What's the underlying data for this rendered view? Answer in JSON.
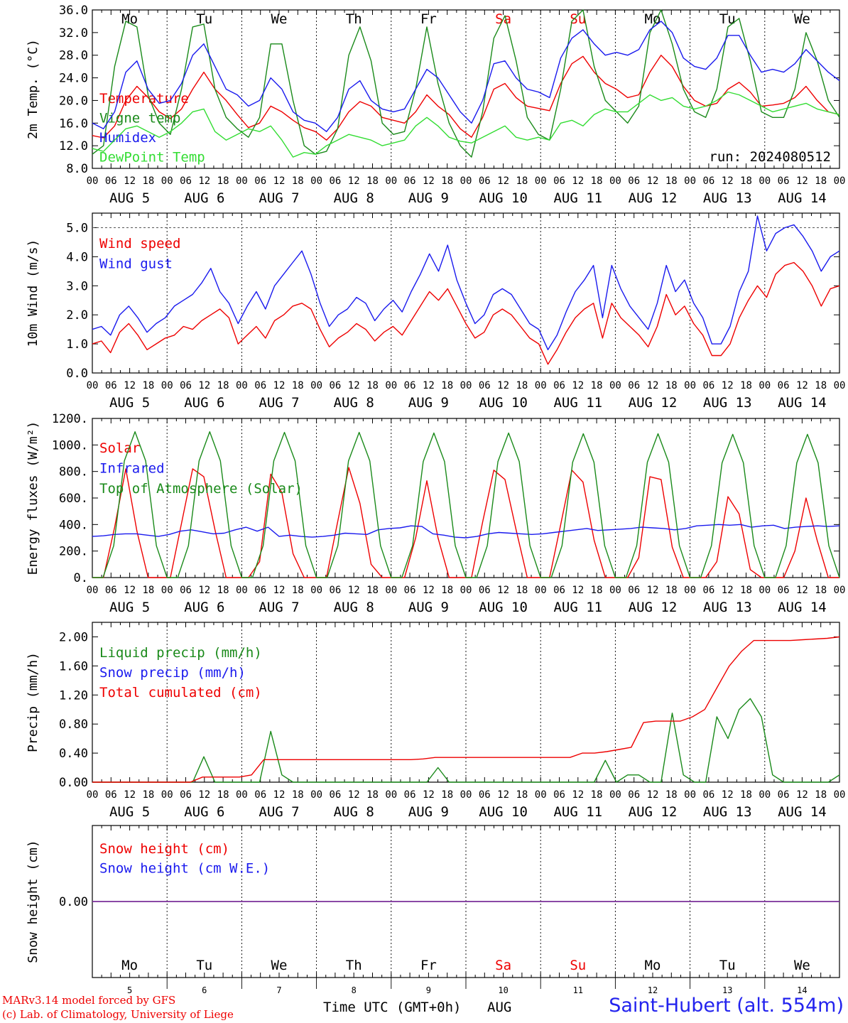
{
  "hours_axis": [
    "00",
    "06",
    "12",
    "18"
  ],
  "days": [
    {
      "name": "Mo",
      "date": "AUG 5",
      "num": "5",
      "weekend": false
    },
    {
      "name": "Tu",
      "date": "AUG 6",
      "num": "6",
      "weekend": false
    },
    {
      "name": "We",
      "date": "AUG 7",
      "num": "7",
      "weekend": false
    },
    {
      "name": "Th",
      "date": "AUG 8",
      "num": "8",
      "weekend": false
    },
    {
      "name": "Fr",
      "date": "AUG 9",
      "num": "9",
      "weekend": false
    },
    {
      "name": "Sa",
      "date": "AUG 10",
      "num": "10",
      "weekend": true
    },
    {
      "name": "Su",
      "date": "AUG 11",
      "num": "11",
      "weekend": true
    },
    {
      "name": "Mo",
      "date": "AUG 12",
      "num": "12",
      "weekend": false
    },
    {
      "name": "Tu",
      "date": "AUG 13",
      "num": "13",
      "weekend": false
    },
    {
      "name": "We",
      "date": "AUG 14",
      "num": "14",
      "weekend": false
    }
  ],
  "colors": {
    "red": "#ee0000",
    "green": "#1a8a1a",
    "blue": "#1a1aee",
    "lightgreen": "#33dd33",
    "purple": "#7a2f9a",
    "axis": "#000000"
  },
  "chart_data": [
    {
      "type": "line",
      "ylabel": "2m Temp. (°C)",
      "ylim": [
        8,
        36
      ],
      "yticks": [
        "8.0",
        "12.0",
        "16.0",
        "20.0",
        "24.0",
        "28.0",
        "32.0",
        "36.0"
      ],
      "annotation": "run: 2024080512",
      "x_hours": [
        0,
        3,
        6,
        9,
        12,
        15,
        18,
        21,
        24,
        27,
        30,
        33,
        36,
        39,
        42,
        45,
        48,
        51,
        54,
        57,
        60,
        63,
        66,
        69,
        72,
        75,
        78,
        81,
        84,
        87,
        90,
        93,
        96,
        99,
        102,
        105,
        108,
        111,
        114,
        117,
        120,
        123,
        126,
        129,
        132,
        135,
        138,
        141,
        144,
        147,
        150,
        153,
        156,
        159,
        162,
        165,
        168,
        171,
        174,
        177,
        180,
        183,
        186,
        189,
        192,
        195,
        198,
        201,
        204,
        207,
        210,
        213,
        216,
        219,
        222,
        225,
        228,
        231,
        234,
        237,
        240
      ],
      "series": [
        {
          "name": "Temperature",
          "color": "#ee0000",
          "values": [
            13.8,
            13.4,
            15.5,
            20.0,
            22.5,
            20.5,
            18.0,
            16.8,
            18.5,
            22.0,
            25.0,
            22.0,
            20.0,
            17.5,
            15.2,
            16.0,
            19.0,
            18.0,
            16.5,
            15.2,
            14.5,
            13.0,
            15.0,
            18.0,
            19.8,
            19.0,
            17.0,
            16.5,
            16.0,
            18.0,
            21.0,
            19.0,
            17.5,
            15.0,
            13.5,
            17.0,
            22.0,
            23.0,
            20.5,
            19.0,
            18.6,
            18.2,
            23.0,
            26.5,
            27.8,
            25.0,
            23.0,
            22.0,
            20.5,
            21.0,
            25.0,
            28.0,
            26.0,
            22.5,
            20.0,
            19.0,
            19.5,
            22.0,
            23.2,
            21.5,
            19.0,
            19.2,
            19.5,
            20.5,
            22.5,
            20.0,
            18.0,
            17.5
          ]
        },
        {
          "name": "Vigne temp",
          "color": "#1a8a1a",
          "values": [
            10.5,
            12.0,
            26.0,
            34.0,
            33.0,
            21.0,
            16.0,
            14.0,
            22.0,
            33.0,
            33.5,
            22.0,
            17.0,
            15.0,
            13.5,
            17.0,
            30.0,
            30.0,
            20.0,
            12.0,
            10.5,
            11.0,
            15.0,
            28.0,
            33.0,
            27.0,
            16.0,
            14.0,
            14.5,
            22.0,
            33.0,
            23.0,
            16.0,
            12.0,
            10.0,
            18.0,
            31.0,
            35.0,
            27.0,
            17.0,
            14.0,
            13.0,
            22.0,
            34.0,
            36.0,
            26.0,
            20.0,
            18.0,
            16.0,
            19.0,
            32.0,
            36.0,
            30.0,
            22.0,
            18.0,
            17.0,
            22.0,
            33.0,
            34.5,
            27.0,
            18.0,
            17.0,
            17.0,
            22.0,
            32.0,
            27.0,
            20.0,
            17.0
          ]
        },
        {
          "name": "Humidex",
          "color": "#1a1aee",
          "values": [
            16.0,
            15.0,
            18.0,
            25.0,
            27.0,
            22.0,
            19.5,
            20.0,
            23.0,
            28.0,
            30.0,
            26.0,
            22.0,
            21.0,
            19.0,
            20.0,
            24.0,
            22.0,
            18.0,
            16.5,
            16.0,
            14.5,
            17.0,
            22.0,
            23.5,
            20.0,
            18.5,
            18.0,
            18.5,
            22.0,
            25.5,
            24.0,
            21.0,
            18.0,
            16.0,
            20.0,
            26.5,
            27.0,
            24.0,
            22.0,
            21.5,
            20.5,
            27.5,
            31.0,
            32.5,
            30.0,
            28.0,
            28.5,
            28.0,
            29.0,
            32.5,
            34.0,
            32.0,
            27.5,
            26.0,
            25.5,
            27.5,
            31.5,
            31.5,
            28.0,
            25.0,
            25.5,
            25.0,
            26.5,
            29.0,
            27.0,
            25.0,
            23.5
          ]
        },
        {
          "name": "DewPoint Temp",
          "color": "#33dd33",
          "values": [
            11.5,
            11.0,
            13.0,
            15.0,
            15.5,
            14.5,
            13.5,
            14.5,
            16.0,
            18.0,
            18.5,
            14.5,
            13.0,
            14.0,
            15.0,
            14.5,
            15.5,
            13.0,
            10.0,
            10.8,
            10.5,
            12.0,
            13.0,
            14.0,
            13.5,
            13.0,
            12.0,
            12.5,
            13.0,
            15.5,
            17.0,
            15.5,
            13.5,
            12.8,
            12.5,
            13.5,
            14.5,
            15.5,
            13.5,
            13.0,
            13.5,
            13.0,
            16.0,
            16.5,
            15.5,
            17.5,
            18.5,
            18.0,
            18.0,
            19.5,
            21.0,
            20.0,
            20.5,
            19.0,
            18.5,
            19.0,
            20.0,
            21.5,
            21.0,
            20.0,
            19.0,
            18.0,
            18.5,
            19.0,
            19.5,
            18.5,
            18.0,
            17.5
          ]
        }
      ]
    },
    {
      "type": "line",
      "ylabel": "10m Wind (m/s)",
      "ylim": [
        0,
        5.5
      ],
      "yticks": [
        "0.0",
        "1.0",
        "2.0",
        "3.0",
        "4.0",
        "5.0"
      ],
      "series": [
        {
          "name": "Wind speed",
          "color": "#ee0000",
          "values": [
            1.0,
            1.1,
            0.7,
            1.4,
            1.7,
            1.3,
            0.8,
            1.0,
            1.2,
            1.3,
            1.6,
            1.5,
            1.8,
            2.0,
            2.2,
            1.9,
            1.0,
            1.3,
            1.6,
            1.2,
            1.8,
            2.0,
            2.3,
            2.4,
            2.2,
            1.5,
            0.9,
            1.2,
            1.4,
            1.7,
            1.5,
            1.1,
            1.4,
            1.6,
            1.3,
            1.8,
            2.3,
            2.8,
            2.5,
            2.9,
            2.3,
            1.7,
            1.2,
            1.4,
            2.0,
            2.2,
            2.0,
            1.6,
            1.2,
            1.0,
            0.3,
            0.8,
            1.4,
            1.9,
            2.2,
            2.4,
            1.2,
            2.4,
            1.9,
            1.6,
            1.3,
            0.9,
            1.6,
            2.7,
            2.0,
            2.3,
            1.7,
            1.3,
            0.6,
            0.6,
            1.0,
            1.9,
            2.5,
            3.0,
            2.6,
            3.4,
            3.7,
            3.8,
            3.5,
            3.0,
            2.3,
            2.9,
            3.0
          ]
        },
        {
          "name": "Wind gust",
          "color": "#1a1aee",
          "values": [
            1.5,
            1.6,
            1.3,
            2.0,
            2.3,
            1.9,
            1.4,
            1.7,
            1.9,
            2.3,
            2.5,
            2.7,
            3.1,
            3.6,
            2.8,
            2.4,
            1.7,
            2.3,
            2.8,
            2.2,
            3.0,
            3.4,
            3.8,
            4.2,
            3.4,
            2.4,
            1.6,
            2.0,
            2.2,
            2.6,
            2.4,
            1.8,
            2.2,
            2.5,
            2.1,
            2.8,
            3.4,
            4.1,
            3.5,
            4.4,
            3.2,
            2.4,
            1.7,
            2.0,
            2.7,
            2.9,
            2.7,
            2.2,
            1.7,
            1.5,
            0.8,
            1.3,
            2.1,
            2.8,
            3.2,
            3.7,
            1.9,
            3.7,
            2.9,
            2.3,
            1.9,
            1.5,
            2.4,
            3.7,
            2.8,
            3.2,
            2.4,
            1.9,
            1.0,
            1.0,
            1.6,
            2.8,
            3.5,
            5.4,
            4.2,
            4.8,
            5.0,
            5.1,
            4.7,
            4.2,
            3.5,
            4.0,
            4.2
          ]
        }
      ]
    },
    {
      "type": "line",
      "ylabel": "Energy fluxes (W/m²)",
      "ylim": [
        0,
        1200
      ],
      "yticks": [
        "0.",
        "200.",
        "400.",
        "600.",
        "800.",
        "1000.",
        "1200."
      ],
      "series": [
        {
          "name": "Solar",
          "color": "#ee0000",
          "values": [
            0,
            0,
            380,
            820,
            350,
            0,
            0,
            0,
            410,
            820,
            760,
            360,
            0,
            0,
            0,
            120,
            780,
            640,
            180,
            0,
            0,
            0,
            420,
            830,
            560,
            100,
            0,
            0,
            0,
            300,
            730,
            300,
            0,
            0,
            0,
            420,
            810,
            740,
            360,
            0,
            0,
            0,
            400,
            810,
            720,
            280,
            0,
            0,
            0,
            150,
            760,
            740,
            230,
            0,
            0,
            0,
            120,
            610,
            480,
            60,
            0,
            0,
            0,
            200,
            600,
            280,
            0,
            0
          ]
        },
        {
          "name": "Infrared",
          "color": "#1a1aee",
          "values": [
            310,
            315,
            325,
            330,
            330,
            320,
            310,
            325,
            350,
            360,
            345,
            330,
            335,
            360,
            380,
            350,
            380,
            310,
            320,
            310,
            305,
            310,
            320,
            335,
            330,
            325,
            360,
            370,
            375,
            390,
            385,
            330,
            320,
            305,
            300,
            310,
            330,
            340,
            335,
            330,
            325,
            330,
            340,
            350,
            360,
            370,
            355,
            360,
            365,
            370,
            380,
            375,
            370,
            360,
            370,
            390,
            395,
            400,
            395,
            400,
            380,
            390,
            395,
            370,
            380,
            385,
            390,
            385,
            390
          ]
        },
        {
          "name": "Top of Atmosphere (Solar)",
          "color": "#1a8a1a",
          "values": [
            0,
            0,
            240,
            880,
            1100,
            880,
            240,
            0,
            0,
            240,
            880,
            1100,
            880,
            240,
            0,
            0,
            240,
            880,
            1095,
            880,
            240,
            0,
            0,
            240,
            880,
            1095,
            880,
            240,
            0,
            0,
            240,
            875,
            1090,
            875,
            240,
            0,
            0,
            240,
            875,
            1090,
            875,
            240,
            0,
            0,
            240,
            870,
            1085,
            870,
            240,
            0,
            0,
            240,
            870,
            1085,
            870,
            240,
            0,
            0,
            240,
            865,
            1080,
            865,
            240,
            0,
            0,
            240,
            865,
            1080,
            865,
            240,
            0
          ]
        }
      ]
    },
    {
      "type": "line",
      "ylabel": "Precip (mm/h)",
      "ylim": [
        0,
        2.2
      ],
      "yticks": [
        "0.00",
        "0.40",
        "0.80",
        "1.20",
        "1.60",
        "2.00"
      ],
      "series": [
        {
          "name": "Liquid precip (mm/h)",
          "color": "#1a8a1a",
          "values": [
            0,
            0,
            0,
            0,
            0,
            0,
            0,
            0,
            0,
            0,
            0.35,
            0,
            0,
            0,
            0,
            0,
            0.7,
            0.1,
            0,
            0,
            0,
            0,
            0,
            0,
            0,
            0,
            0,
            0,
            0,
            0,
            0,
            0.2,
            0,
            0,
            0,
            0,
            0,
            0,
            0,
            0,
            0,
            0,
            0,
            0,
            0,
            0,
            0.3,
            0,
            0.1,
            0.1,
            0,
            0,
            0.95,
            0.1,
            0,
            0,
            0.9,
            0.6,
            1.0,
            1.15,
            0.9,
            0.1,
            0,
            0,
            0,
            0,
            0,
            0.1
          ]
        },
        {
          "name": "Snow precip (mm/h)",
          "color": "#1a1aee",
          "values": []
        },
        {
          "name": "Total cumulated (cm)",
          "color": "#ee0000",
          "values": [
            0,
            0,
            0,
            0,
            0,
            0,
            0,
            0,
            0,
            0.07,
            0.07,
            0.07,
            0.07,
            0.1,
            0.31,
            0.31,
            0.31,
            0.31,
            0.31,
            0.31,
            0.31,
            0.31,
            0.31,
            0.31,
            0.31,
            0.31,
            0.31,
            0.32,
            0.34,
            0.34,
            0.34,
            0.34,
            0.34,
            0.34,
            0.34,
            0.34,
            0.34,
            0.34,
            0.34,
            0.34,
            0.4,
            0.4,
            0.42,
            0.45,
            0.48,
            0.82,
            0.84,
            0.84,
            0.84,
            0.9,
            1.0,
            1.3,
            1.6,
            1.8,
            1.95,
            1.95,
            1.95,
            1.95,
            1.96,
            1.97,
            1.98,
            2.0
          ]
        }
      ]
    },
    {
      "type": "line",
      "ylabel": "Snow height (cm)",
      "ylim": [
        -1,
        1
      ],
      "yticks": [
        "0.00"
      ],
      "series": [
        {
          "name": "Snow height (cm)",
          "color": "#ee0000",
          "values": [
            0,
            0
          ]
        },
        {
          "name": "Snow height (cm W.E.)",
          "color": "#1a1aee",
          "values": [
            0,
            0
          ]
        }
      ]
    }
  ],
  "xlabel": "Time UTC (GMT+0h)",
  "xlabel_month": "AUG",
  "footer": {
    "line1": "MARv3.14 model forced by GFS",
    "line2": "(c) Lab. of Climatology, University of Liege",
    "location": "Saint-Hubert (alt. 554m)"
  }
}
